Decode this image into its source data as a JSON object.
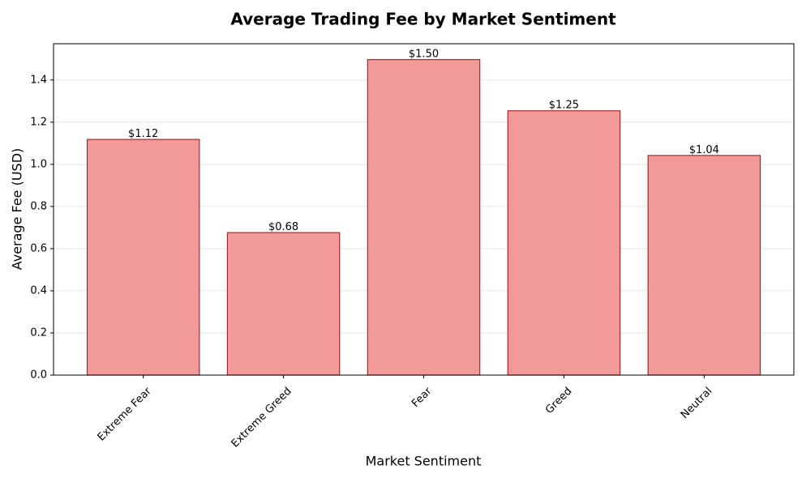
{
  "chart_data": {
    "type": "bar",
    "title": "Average Trading Fee by Market Sentiment",
    "xlabel": "Market Sentiment",
    "ylabel": "Average Fee (USD)",
    "categories": [
      "Extreme Fear",
      "Extreme Greed",
      "Fear",
      "Greed",
      "Neutral"
    ],
    "values": [
      1.118,
      0.676,
      1.497,
      1.254,
      1.042
    ],
    "value_labels": [
      "$1.12",
      "$0.68",
      "$1.50",
      "$1.25",
      "$1.04"
    ],
    "color": "#f29a9a",
    "edgecolor": "#a52a2a",
    "ylim": [
      0,
      1.572
    ],
    "yticks": [
      {
        "value": 0,
        "label": "0.0"
      },
      {
        "value": 0.2,
        "label": "0.2"
      },
      {
        "value": 0.4,
        "label": "0.4"
      },
      {
        "value": 0.6,
        "label": "0.6"
      },
      {
        "value": 0.8,
        "label": "0.8"
      },
      {
        "value": 1.0,
        "label": "1.0"
      },
      {
        "value": 1.2,
        "label": "1.2"
      },
      {
        "value": 1.4,
        "label": "1.4"
      }
    ],
    "grid": true
  }
}
